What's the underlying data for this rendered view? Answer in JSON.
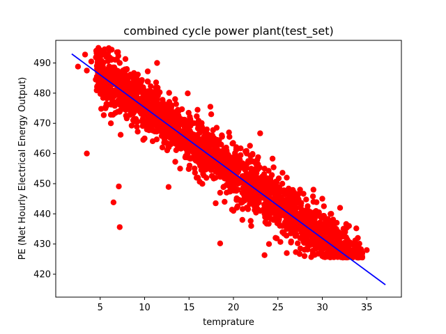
{
  "chart_data": {
    "type": "scatter",
    "title": "combined cycle power plant(test_set)",
    "xlabel": "temprature",
    "ylabel": "PE (Net Hourly Electrical Energy Output)",
    "xlim": [
      0.0,
      38.9
    ],
    "ylim": [
      412.4,
      497.5
    ],
    "xticks": [
      5,
      10,
      15,
      20,
      25,
      30,
      35
    ],
    "yticks": [
      420,
      430,
      440,
      450,
      460,
      470,
      480,
      490
    ],
    "grid": false,
    "legend": "none",
    "colors": {
      "points": "#ff0000",
      "line": "#0000ff"
    },
    "series": [
      {
        "kind": "scatter",
        "description": "red points following a negative linear trend (approx. PE = 497 - 2.17*T ± noise)",
        "points": [
          [
            2.5,
            488.8
          ],
          [
            3.3,
            492.8
          ],
          [
            3.5,
            487.5
          ],
          [
            3.5,
            460.0
          ],
          [
            4.0,
            490.5
          ],
          [
            4.8,
            495.0
          ],
          [
            5.5,
            494.5
          ],
          [
            6.3,
            494.4
          ],
          [
            7.0,
            493.6
          ],
          [
            7.2,
            490.0
          ],
          [
            5.6,
            475.0
          ],
          [
            6.2,
            470.0
          ],
          [
            5.4,
            472.7
          ],
          [
            6.5,
            443.8
          ],
          [
            7.1,
            449.1
          ],
          [
            7.2,
            435.6
          ],
          [
            7.3,
            466.2
          ],
          [
            11.4,
            490.0
          ],
          [
            12.7,
            448.9
          ],
          [
            18.5,
            430.2
          ],
          [
            23.0,
            466.7
          ],
          [
            23.5,
            426.3
          ],
          [
            24.4,
            458.3
          ],
          [
            27.5,
            448.0
          ],
          [
            5.2,
            486.0
          ],
          [
            5.8,
            484.0
          ],
          [
            6.5,
            483.0
          ],
          [
            7.0,
            481.0
          ],
          [
            7.5,
            482.0
          ],
          [
            8.0,
            480.0
          ],
          [
            8.5,
            479.0
          ],
          [
            9.0,
            476.0
          ],
          [
            9.5,
            477.0
          ],
          [
            10.0,
            475.0
          ],
          [
            10.5,
            474.0
          ],
          [
            11.0,
            473.0
          ],
          [
            11.5,
            471.0
          ],
          [
            12.0,
            470.0
          ],
          [
            12.5,
            468.0
          ],
          [
            13.0,
            467.0
          ],
          [
            13.5,
            466.0
          ],
          [
            14.0,
            465.0
          ],
          [
            14.5,
            463.0
          ],
          [
            15.0,
            462.0
          ],
          [
            15.5,
            461.0
          ],
          [
            16.0,
            459.0
          ],
          [
            16.5,
            458.0
          ],
          [
            17.0,
            457.0
          ],
          [
            17.5,
            456.0
          ],
          [
            18.0,
            454.0
          ],
          [
            18.5,
            453.0
          ],
          [
            19.0,
            452.0
          ],
          [
            19.5,
            450.0
          ],
          [
            20.0,
            449.0
          ],
          [
            20.5,
            448.0
          ],
          [
            21.0,
            447.0
          ],
          [
            21.5,
            445.0
          ],
          [
            22.0,
            444.0
          ],
          [
            22.5,
            443.0
          ],
          [
            23.0,
            441.0
          ],
          [
            23.5,
            440.0
          ],
          [
            24.0,
            439.0
          ],
          [
            24.5,
            438.0
          ],
          [
            25.0,
            437.0
          ],
          [
            25.5,
            436.0
          ],
          [
            26.0,
            435.0
          ],
          [
            26.5,
            434.0
          ],
          [
            27.0,
            433.0
          ],
          [
            27.5,
            432.0
          ],
          [
            28.0,
            432.0
          ],
          [
            28.5,
            431.0
          ],
          [
            29.0,
            431.0
          ],
          [
            29.5,
            430.0
          ],
          [
            30.0,
            430.0
          ],
          [
            30.5,
            429.0
          ],
          [
            31.0,
            429.0
          ],
          [
            31.5,
            428.0
          ],
          [
            32.0,
            428.0
          ],
          [
            32.5,
            427.0
          ],
          [
            33.0,
            428.0
          ],
          [
            33.5,
            430.0
          ],
          [
            34.0,
            432.0
          ],
          [
            34.5,
            427.0
          ],
          [
            35.0,
            428.0
          ],
          [
            19.0,
            444.0
          ],
          [
            18.0,
            443.5
          ],
          [
            18.5,
            447.0
          ],
          [
            20.0,
            458.0
          ],
          [
            21.0,
            438.0
          ],
          [
            22.0,
            455.0
          ],
          [
            24.0,
            450.0
          ],
          [
            25.0,
            445.0
          ],
          [
            26.0,
            452.0
          ],
          [
            27.0,
            446.0
          ],
          [
            28.0,
            441.0
          ],
          [
            29.0,
            448.0
          ],
          [
            30.0,
            445.0
          ],
          [
            31.0,
            440.0
          ],
          [
            32.0,
            442.0
          ],
          [
            33.0,
            436.0
          ],
          [
            17.0,
            468.0
          ],
          [
            15.0,
            471.0
          ],
          [
            13.0,
            476.0
          ],
          [
            11.0,
            479.0
          ],
          [
            9.0,
            485.0
          ],
          [
            8.0,
            488.0
          ],
          [
            7.0,
            486.0
          ],
          [
            6.0,
            488.0
          ],
          [
            10.0,
            465.0
          ],
          [
            12.0,
            462.0
          ],
          [
            14.0,
            455.0
          ],
          [
            16.0,
            452.0
          ],
          [
            18.0,
            462.0
          ],
          [
            20.0,
            441.0
          ],
          [
            22.0,
            436.0
          ],
          [
            24.0,
            430.0
          ],
          [
            26.0,
            427.0
          ],
          [
            28.0,
            426.0
          ],
          [
            30.0,
            426.0
          ],
          [
            32.0,
            426.0
          ],
          [
            34.0,
            426.0
          ],
          [
            27.0,
            445.0
          ],
          [
            29.0,
            444.0
          ],
          [
            31.0,
            437.0
          ],
          [
            17.5,
            473.0
          ],
          [
            19.5,
            467.0
          ],
          [
            21.5,
            460.0
          ],
          [
            23.5,
            455.0
          ],
          [
            25.5,
            450.0
          ]
        ]
      },
      {
        "kind": "line",
        "description": "blue fitted regression line",
        "points": [
          [
            1.8,
            493.0
          ],
          [
            37.1,
            416.5
          ]
        ]
      }
    ]
  }
}
